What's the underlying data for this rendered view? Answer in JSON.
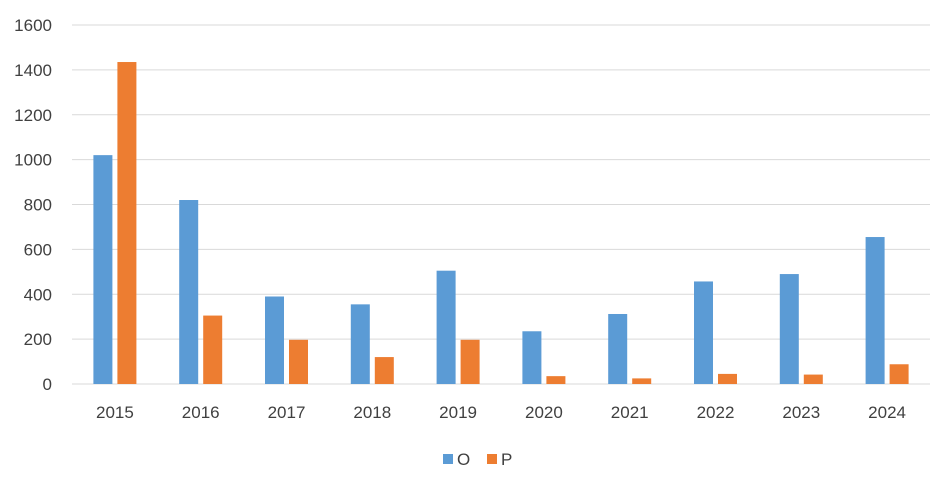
{
  "chart_data": {
    "type": "bar",
    "categories": [
      "2015",
      "2016",
      "2017",
      "2018",
      "2019",
      "2020",
      "2021",
      "2022",
      "2023",
      "2024"
    ],
    "series": [
      {
        "name": "O",
        "color": "#5b9bd5",
        "values": [
          1020,
          820,
          390,
          355,
          505,
          235,
          312,
          457,
          490,
          655
        ]
      },
      {
        "name": "P",
        "color": "#ed7d31",
        "values": [
          1435,
          305,
          197,
          120,
          197,
          35,
          25,
          45,
          42,
          88
        ]
      }
    ],
    "ylim": [
      0,
      1600
    ],
    "yticks": [
      0,
      200,
      400,
      600,
      800,
      1000,
      1200,
      1400,
      1600
    ],
    "grid": true,
    "legend_position": "bottom",
    "title": "",
    "xlabel": "",
    "ylabel": ""
  }
}
